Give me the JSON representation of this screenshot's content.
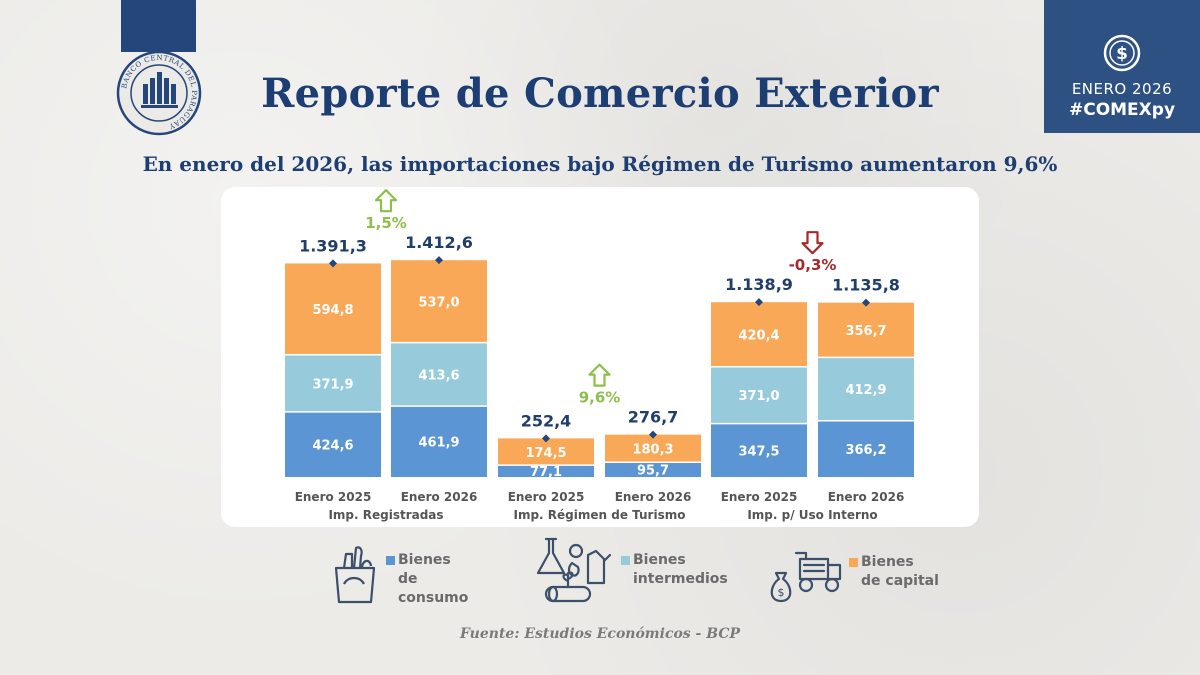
{
  "header": {
    "title": "Reporte de Comercio Exterior",
    "subtitle": "En enero del 2026, las importaciones bajo Régimen de Turismo aumentaron 9,6%",
    "corner_date": "ENERO 2026",
    "corner_tag": "#COMEXpy",
    "logo_icon": "banco-central-seal-icon",
    "logo_text": "BANCO CENTRAL DEL PARAGUAY"
  },
  "colors": {
    "consumo": "#5b95d3",
    "intermedios": "#97cbdc",
    "capital": "#f8a857",
    "total_text": "#1f3e6a",
    "up": "#8cc04a",
    "down": "#a52a2a"
  },
  "chart_data": {
    "type": "bar",
    "stacked": true,
    "groups": [
      {
        "name": "Imp. Registradas",
        "change": "1,5%",
        "direction": "up",
        "bars": [
          {
            "label": "Enero 2025",
            "total": "1.391,3",
            "values": [
              424.6,
              371.9,
              594.8
            ],
            "labels": [
              "424,6",
              "371,9",
              "594,8"
            ]
          },
          {
            "label": "Enero 2026",
            "total": "1.412,6",
            "values": [
              461.9,
              413.6,
              537.0
            ],
            "labels": [
              "461,9",
              "413,6",
              "537,0"
            ]
          }
        ]
      },
      {
        "name": "Imp. Régimen de Turismo",
        "change": "9,6%",
        "direction": "up",
        "bars": [
          {
            "label": "Enero 2025",
            "total": "252,4",
            "values": [
              77.1,
              0,
              174.5
            ],
            "labels": [
              "77,1",
              "",
              "174,5"
            ]
          },
          {
            "label": "Enero 2026",
            "total": "276,7",
            "values": [
              95.7,
              0,
              180.3
            ],
            "labels": [
              "95,7",
              "",
              "180,3"
            ]
          }
        ]
      },
      {
        "name": "Imp. p/ Uso Interno",
        "change": "-0,3%",
        "direction": "down",
        "bars": [
          {
            "label": "Enero 2025",
            "total": "1.138,9",
            "values": [
              347.5,
              371.0,
              420.4
            ],
            "labels": [
              "347,5",
              "371,0",
              "420,4"
            ]
          },
          {
            "label": "Enero 2026",
            "total": "1.135,8",
            "values": [
              366.2,
              412.9,
              356.7
            ],
            "labels": [
              "366,2",
              "412,9",
              "356,7"
            ]
          }
        ]
      }
    ],
    "series": [
      "Bienes de consumo",
      "Bienes intermedios",
      "Bienes de capital"
    ]
  },
  "legend": [
    {
      "label": "Bienes\nde consumo",
      "icon": "shopping-bag-icon"
    },
    {
      "label": "Bienes\nintermedios",
      "icon": "lab-fuel-wood-icon"
    },
    {
      "label": "Bienes\nde capital",
      "icon": "money-bag-harvester-icon"
    }
  ],
  "footer": {
    "source": "Fuente: Estudios Económicos - BCP"
  }
}
